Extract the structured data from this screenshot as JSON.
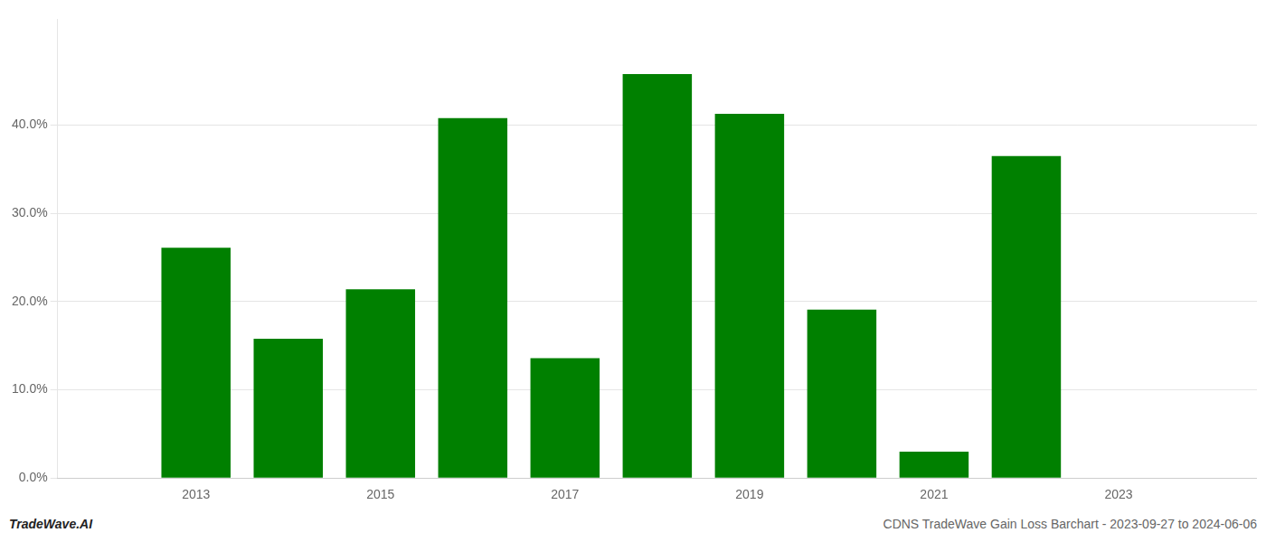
{
  "chart_data": {
    "type": "bar",
    "x": [
      2013,
      2014,
      2015,
      2016,
      2017,
      2018,
      2019,
      2020,
      2021,
      2022
    ],
    "values": [
      0.261,
      0.158,
      0.214,
      0.408,
      0.136,
      0.458,
      0.413,
      0.191,
      0.03,
      0.365
    ],
    "color": "#008000",
    "xlim": [
      2011.5,
      2024.5
    ],
    "xticks": [
      2013,
      2015,
      2017,
      2019,
      2021,
      2023
    ],
    "ylim": [
      0,
      0.52
    ],
    "yticks": [
      {
        "value": 0.0,
        "label": "0.0%"
      },
      {
        "value": 0.1,
        "label": "10.0%"
      },
      {
        "value": 0.2,
        "label": "20.0%"
      },
      {
        "value": 0.3,
        "label": "30.0%"
      },
      {
        "value": 0.4,
        "label": "40.0%"
      }
    ],
    "grid": true,
    "annotations": [
      "TradeWave.AI",
      "CDNS TradeWave Gain Loss Barchart - 2023-09-27 to 2024-06-06"
    ]
  }
}
